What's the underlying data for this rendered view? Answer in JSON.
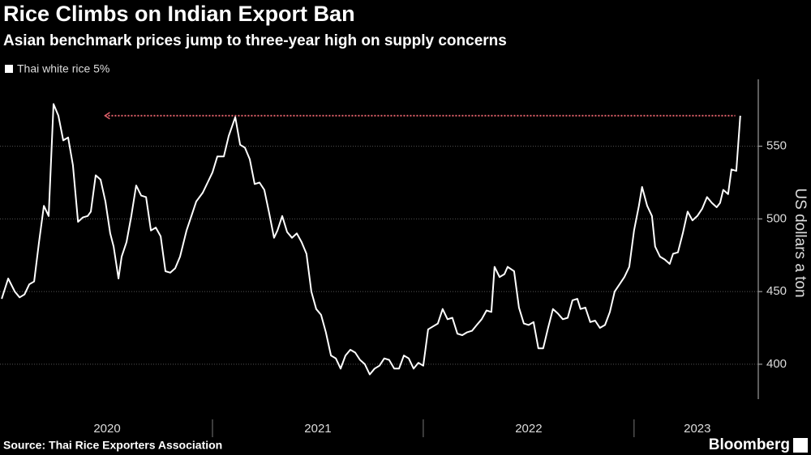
{
  "chart_data": {
    "type": "line",
    "title": "Rice Climbs on Indian Export Ban",
    "subtitle": "Asian benchmark prices jump to three-year high on supply concerns",
    "y_axis_label": "US dollars a ton",
    "source": "Source: Thai Rice Exporters Association",
    "brand": "Bloomberg",
    "legend_position": "top-left",
    "grid": true,
    "xlim": [
      2019.992,
      2023.57
    ],
    "xticks": [
      {
        "value": 2020.5,
        "label": "2020"
      },
      {
        "value": 2021.5,
        "label": "2021"
      },
      {
        "value": 2022.5,
        "label": "2022"
      },
      {
        "value": 2023.3,
        "label": "2023"
      }
    ],
    "ylim": [
      376,
      596
    ],
    "yticks": [
      400,
      450,
      500,
      550
    ],
    "reference_line": {
      "value": 571,
      "x": [
        2020.49,
        2023.48
      ],
      "color": "#e0606a"
    },
    "x": [
      2020.0,
      2020.031,
      2020.062,
      2020.085,
      2020.108,
      2020.131,
      2020.154,
      2020.177,
      2020.2,
      2020.223,
      2020.246,
      2020.269,
      2020.292,
      2020.315,
      2020.338,
      2020.362,
      2020.385,
      2020.408,
      2020.423,
      2020.446,
      2020.469,
      2020.492,
      2020.515,
      2020.531,
      2020.554,
      2020.569,
      2020.592,
      2020.615,
      2020.638,
      2020.662,
      2020.685,
      2020.708,
      2020.731,
      2020.754,
      2020.777,
      2020.8,
      2020.823,
      2020.846,
      2020.877,
      2020.9,
      2020.923,
      2020.954,
      2020.977,
      2021.0,
      2021.023,
      2021.054,
      2021.077,
      2021.108,
      2021.131,
      2021.154,
      2021.177,
      2021.2,
      2021.223,
      2021.246,
      2021.269,
      2021.292,
      2021.308,
      2021.331,
      2021.354,
      2021.377,
      2021.4,
      2021.423,
      2021.446,
      2021.469,
      2021.492,
      2021.515,
      2021.538,
      2021.562,
      2021.585,
      2021.608,
      2021.631,
      2021.654,
      2021.677,
      2021.7,
      2021.723,
      2021.746,
      2021.769,
      2021.792,
      2021.815,
      2021.838,
      2021.862,
      2021.885,
      2021.908,
      2021.931,
      2021.954,
      2021.977,
      2022.0,
      2022.023,
      2022.046,
      2022.069,
      2022.092,
      2022.115,
      2022.138,
      2022.162,
      2022.185,
      2022.208,
      2022.231,
      2022.254,
      2022.277,
      2022.3,
      2022.323,
      2022.338,
      2022.362,
      2022.385,
      2022.4,
      2022.431,
      2022.454,
      2022.477,
      2022.5,
      2022.523,
      2022.546,
      2022.569,
      2022.592,
      2022.615,
      2022.638,
      2022.662,
      2022.685,
      2022.708,
      2022.731,
      2022.746,
      2022.769,
      2022.792,
      2022.815,
      2022.838,
      2022.862,
      2022.885,
      2022.908,
      2022.931,
      2022.954,
      2022.977,
      2023.0,
      2023.023,
      2023.038,
      2023.062,
      2023.085,
      2023.1,
      2023.123,
      2023.146,
      2023.169,
      2023.185,
      2023.208,
      2023.231,
      2023.254,
      2023.277,
      2023.3,
      2023.323,
      2023.346,
      2023.369,
      2023.392,
      2023.408,
      2023.423,
      2023.446,
      2023.462,
      2023.485,
      2023.504
    ],
    "series": [
      {
        "name": "Thai white rice 5%",
        "color": "#ffffff",
        "values": [
          445,
          459,
          450,
          446,
          448,
          455,
          457,
          484,
          509,
          502,
          579,
          571,
          554,
          556,
          537,
          498,
          501,
          502,
          505,
          530,
          527,
          512,
          490,
          481,
          459,
          474,
          484,
          502,
          523,
          516,
          515,
          492,
          494,
          488,
          464,
          463,
          466,
          474,
          492,
          502,
          512,
          518,
          525,
          532,
          543,
          543,
          557,
          570,
          551,
          549,
          541,
          524,
          525,
          520,
          504,
          487,
          492,
          502,
          491,
          487,
          490,
          484,
          476,
          450,
          438,
          434,
          422,
          406,
          404,
          397,
          406,
          410,
          408,
          403,
          400,
          393,
          397,
          399,
          404,
          403,
          397,
          397,
          406,
          404,
          397,
          401,
          399,
          424,
          426,
          428,
          438,
          431,
          432,
          421,
          420,
          422,
          423,
          427,
          431,
          437,
          436,
          467,
          460,
          462,
          467,
          464,
          439,
          428,
          427,
          429,
          411,
          411,
          425,
          438,
          435,
          431,
          432,
          444,
          445,
          438,
          439,
          429,
          430,
          425,
          427,
          436,
          450,
          455,
          460,
          467,
          492,
          509,
          522,
          509,
          502,
          481,
          474,
          472,
          469,
          476,
          477,
          490,
          505,
          499,
          502,
          507,
          515,
          511,
          508,
          511,
          520,
          517,
          534,
          533,
          571
        ]
      }
    ]
  }
}
